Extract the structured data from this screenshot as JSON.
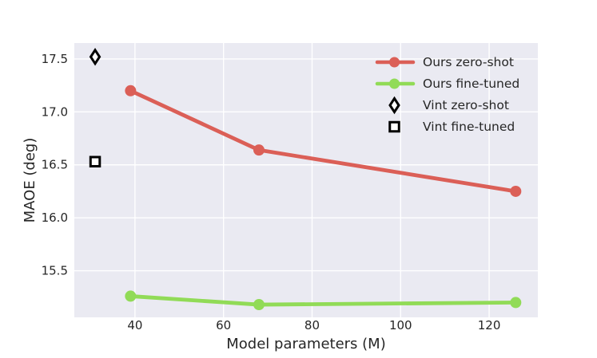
{
  "figure": {
    "background_color": "#ffffff",
    "axes_background_color": "#eaeaf2",
    "grid_color": "#ffffff",
    "text_color": "#262626"
  },
  "chart_data": {
    "type": "line",
    "title": "",
    "xlabel": "Model parameters (M)",
    "ylabel": "MAOE (deg)",
    "xlim": [
      26.3,
      131.0
    ],
    "ylim": [
      15.06,
      17.65
    ],
    "xticks": [
      40,
      60,
      80,
      100,
      120
    ],
    "yticks": [
      15.5,
      16.0,
      16.5,
      17.0,
      17.5
    ],
    "grid": true,
    "legend_position": "upper right",
    "legend_frame": false,
    "series": [
      {
        "name": "Ours zero-shot",
        "kind": "line",
        "color": "#db5f57",
        "marker": "circle",
        "x": [
          39,
          68,
          126
        ],
        "y": [
          17.2,
          16.64,
          16.25
        ]
      },
      {
        "name": "Ours fine-tuned",
        "kind": "line",
        "color": "#91db57",
        "marker": "circle",
        "x": [
          39,
          68,
          126
        ],
        "y": [
          15.26,
          15.18,
          15.2
        ]
      },
      {
        "name": "Vint zero-shot",
        "kind": "scatter",
        "color": "#000000",
        "marker": "thin-diamond",
        "marker_fill": "#ffffff",
        "x": [
          31
        ],
        "y": [
          17.52
        ]
      },
      {
        "name": "Vint fine-tuned",
        "kind": "scatter",
        "color": "#000000",
        "marker": "square",
        "marker_fill": "#ffffff",
        "x": [
          31
        ],
        "y": [
          16.53
        ]
      }
    ]
  }
}
